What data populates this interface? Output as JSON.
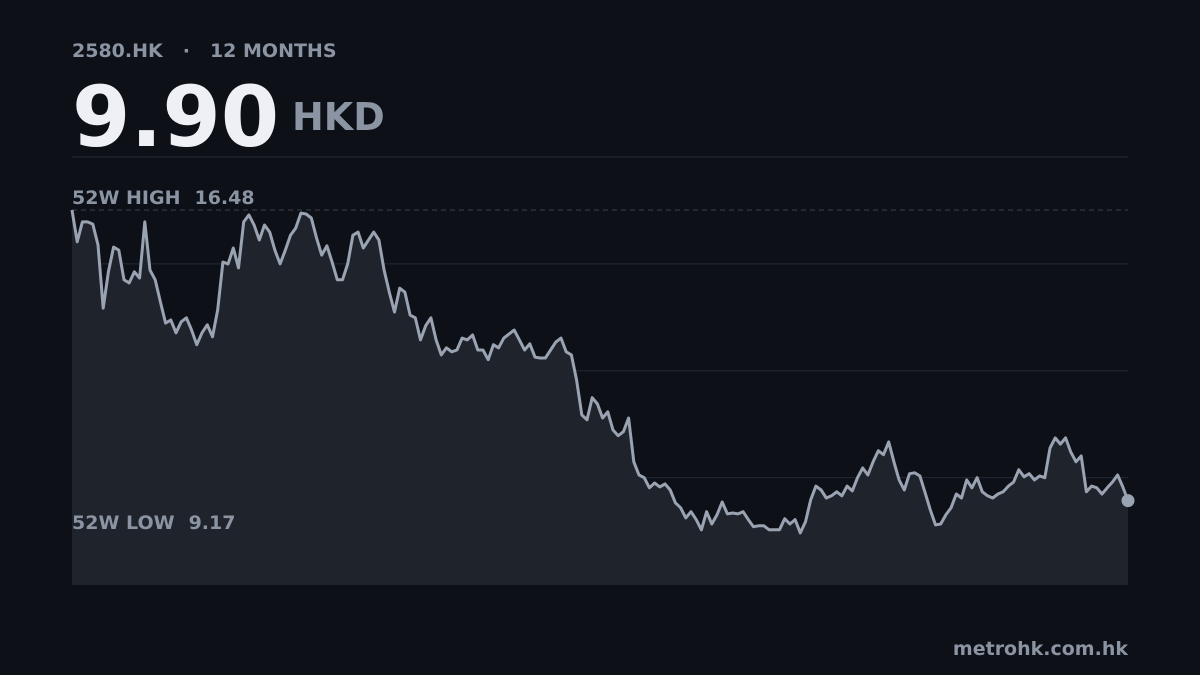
{
  "header": {
    "ticker": "2580.HK",
    "period": "12 MONTHS",
    "price": "9.90",
    "currency": "HKD"
  },
  "footer": "metrohk.com.hk",
  "chart_data": {
    "type": "line",
    "high": {
      "label": "52W HIGH",
      "value": 16.48
    },
    "low": {
      "label": "52W LOW",
      "value": 9.17
    },
    "color": "#9aa3b2",
    "ylim": [
      7.99,
      17.68
    ],
    "yticks": [
      10.42,
      12.84,
      15.26
    ],
    "grid": true,
    "values": [
      16.48,
      15.76,
      16.21,
      16.21,
      16.16,
      15.69,
      14.26,
      15.08,
      15.64,
      15.57,
      14.9,
      14.83,
      15.08,
      14.94,
      16.21,
      15.12,
      14.9,
      14.4,
      13.92,
      13.99,
      13.7,
      13.95,
      14.04,
      13.76,
      13.43,
      13.7,
      13.88,
      13.61,
      14.22,
      15.3,
      15.26,
      15.62,
      15.17,
      16.21,
      16.37,
      16.14,
      15.8,
      16.14,
      15.98,
      15.57,
      15.26,
      15.57,
      15.91,
      16.07,
      16.41,
      16.39,
      16.3,
      15.85,
      15.46,
      15.67,
      15.3,
      14.9,
      14.9,
      15.26,
      15.91,
      15.98,
      15.62,
      15.8,
      15.98,
      15.8,
      15.12,
      14.62,
      14.17,
      14.71,
      14.62,
      14.1,
      14.04,
      13.54,
      13.86,
      14.04,
      13.54,
      13.2,
      13.36,
      13.27,
      13.31,
      13.58,
      13.54,
      13.65,
      13.31,
      13.31,
      13.09,
      13.43,
      13.36,
      13.58,
      13.67,
      13.76,
      13.54,
      13.31,
      13.45,
      13.15,
      13.13,
      13.13,
      13.31,
      13.49,
      13.58,
      13.27,
      13.2,
      12.63,
      11.84,
      11.73,
      12.23,
      12.09,
      11.77,
      11.91,
      11.5,
      11.37,
      11.46,
      11.77,
      10.78,
      10.48,
      10.42,
      10.19,
      10.3,
      10.21,
      10.28,
      10.14,
      9.85,
      9.74,
      9.51,
      9.65,
      9.47,
      9.24,
      9.65,
      9.37,
      9.58,
      9.87,
      9.6,
      9.62,
      9.6,
      9.65,
      9.47,
      9.31,
      9.33,
      9.33,
      9.24,
      9.24,
      9.24,
      9.49,
      9.37,
      9.47,
      9.17,
      9.42,
      9.92,
      10.23,
      10.14,
      9.96,
      10.01,
      10.1,
      10.01,
      10.23,
      10.12,
      10.42,
      10.64,
      10.48,
      10.78,
      11.03,
      10.94,
      11.23,
      10.78,
      10.37,
      10.14,
      10.51,
      10.53,
      10.46,
      10.08,
      9.69,
      9.35,
      9.37,
      9.58,
      9.74,
      10.05,
      9.96,
      10.37,
      10.19,
      10.42,
      10.1,
      10.01,
      9.96,
      10.05,
      10.1,
      10.23,
      10.32,
      10.6,
      10.44,
      10.51,
      10.37,
      10.46,
      10.42,
      11.09,
      11.32,
      11.18,
      11.32,
      11.0,
      10.78,
      10.91,
      10.1,
      10.23,
      10.19,
      10.05,
      10.19,
      10.32,
      10.48,
      10.21,
      9.9
    ]
  }
}
